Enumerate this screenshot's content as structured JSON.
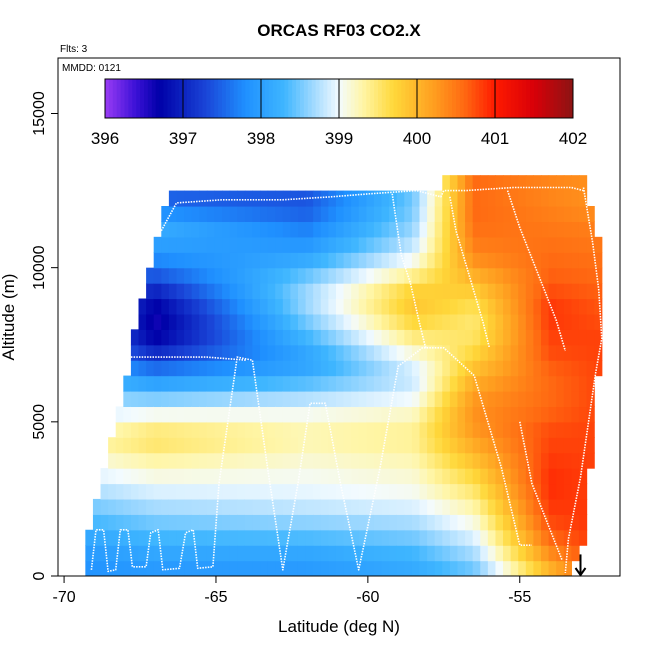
{
  "chart_data": {
    "type": "heatmap",
    "title": "ORCAS RF03 CO2.X",
    "xlabel": "Latitude (deg N)",
    "ylabel": "Altitude (m)",
    "flights_note": "Flts: 3",
    "date_note": "MMDD: 0121",
    "xlim": [
      -70.2,
      -51.7
    ],
    "ylim": [
      0,
      16800
    ],
    "x_ticks": [
      -70,
      -65,
      -60,
      -55
    ],
    "y_ticks": [
      0,
      5000,
      10000,
      15000
    ],
    "colorbar": {
      "min": 396,
      "max": 402,
      "ticks": [
        396,
        397,
        398,
        399,
        400,
        401,
        402
      ],
      "stops": [
        {
          "v": 396.0,
          "c": "#9a3cf5"
        },
        {
          "v": 396.4,
          "c": "#3a10d6"
        },
        {
          "v": 396.7,
          "c": "#0000a8"
        },
        {
          "v": 397.3,
          "c": "#1a46d8"
        },
        {
          "v": 397.8,
          "c": "#1f90ff"
        },
        {
          "v": 398.3,
          "c": "#3fb6ff"
        },
        {
          "v": 398.7,
          "c": "#a8dcff"
        },
        {
          "v": 399.0,
          "c": "#f3fbff"
        },
        {
          "v": 399.3,
          "c": "#fff6a8"
        },
        {
          "v": 399.7,
          "c": "#ffd83a"
        },
        {
          "v": 400.2,
          "c": "#ffa020"
        },
        {
          "v": 400.6,
          "c": "#ff6a12"
        },
        {
          "v": 401.0,
          "c": "#ff1a00"
        },
        {
          "v": 401.5,
          "c": "#d80008"
        },
        {
          "v": 402.0,
          "c": "#8c1414"
        }
      ]
    },
    "grid_x_start": -69.3,
    "grid_x_step": 0.25,
    "grid_y_start": 0,
    "grid_y_step": 500,
    "field_profile": [
      {
        "lat": -69.3,
        "vals": [
          397.8,
          397.9,
          398.0,
          398.2,
          398.4,
          398.6,
          398.8,
          399.0,
          399.2,
          399.3,
          399.0,
          398.8,
          398.5,
          398.2,
          398.0,
          397.8
        ]
      },
      {
        "lat": -67.0,
        "vals": [
          397.9,
          398.0,
          398.2,
          398.4,
          398.6,
          398.8,
          399.0,
          399.2,
          399.4,
          399.6,
          399.3,
          398.8,
          398.3,
          397.8,
          397.3,
          396.8,
          396.6,
          396.6,
          396.8,
          397.2,
          397.6,
          397.9,
          398.1,
          398.2,
          397.5
        ]
      },
      {
        "lat": -62.0,
        "vals": [
          397.9,
          398.0,
          398.2,
          398.5,
          398.7,
          398.9,
          399.0,
          399.1,
          399.2,
          399.3,
          399.2,
          398.9,
          398.6,
          398.2,
          398.0,
          398.2,
          398.4,
          398.6,
          398.7,
          398.6,
          398.3,
          398.0,
          397.8,
          397.6,
          397.4
        ]
      },
      {
        "lat": -58.5,
        "vals": [
          398.1,
          398.2,
          398.4,
          398.6,
          398.8,
          399.0,
          399.1,
          399.2,
          399.3,
          399.4,
          399.3,
          399.1,
          398.9,
          398.8,
          399.0,
          399.3,
          399.6,
          399.8,
          399.9,
          399.6,
          399.2,
          398.9,
          398.7,
          398.6,
          398.5
        ]
      },
      {
        "lat": -56.5,
        "vals": [
          398.4,
          398.6,
          398.8,
          399.0,
          399.2,
          399.4,
          399.6,
          399.8,
          400.0,
          400.2,
          400.3,
          400.3,
          400.2,
          400.0,
          399.8,
          399.6,
          399.5,
          399.5,
          399.7,
          399.9,
          400.2,
          400.4,
          400.5,
          400.6,
          400.6
        ]
      },
      {
        "lat": -54.0,
        "vals": [
          399.9,
          400.2,
          400.5,
          400.7,
          400.8,
          400.9,
          400.9,
          400.9,
          400.8,
          400.8,
          400.7,
          400.6,
          400.6,
          400.6,
          400.7,
          400.8,
          400.8,
          400.9,
          400.8,
          400.7,
          400.6,
          400.6,
          400.5,
          400.5,
          400.4
        ]
      },
      {
        "lat": -52.3,
        "vals": [
          400.8,
          400.9,
          400.9,
          400.9,
          400.9,
          400.8,
          400.8,
          400.8,
          400.8,
          400.8,
          400.8,
          400.8,
          400.8,
          400.8,
          400.8,
          400.8,
          400.8,
          400.7,
          400.7,
          400.6,
          400.6,
          400.5,
          400.5,
          400.4,
          400.3
        ]
      }
    ],
    "coverage": [
      {
        "lat": -69.3,
        "top": 700
      },
      {
        "lat": -69.0,
        "top": 1900
      },
      {
        "lat": -68.5,
        "top": 3700
      },
      {
        "lat": -68.0,
        "top": 5800
      },
      {
        "lat": -67.5,
        "top": 8500
      },
      {
        "lat": -67.0,
        "top": 10400
      },
      {
        "lat": -66.5,
        "top": 12200
      },
      {
        "lat": -63.0,
        "top": 12200
      },
      {
        "lat": -62.0,
        "top": 12500
      },
      {
        "lat": -57.5,
        "top": 12500
      },
      {
        "lat": -56.0,
        "top": 12700
      },
      {
        "lat": -53.0,
        "top": 12700
      },
      {
        "lat": -52.6,
        "top": 11300
      },
      {
        "lat": -52.4,
        "top": 9000
      },
      {
        "lat": -52.6,
        "top": 7000
      }
    ],
    "right_edge": [
      {
        "alt": 0,
        "lat": -53.3
      },
      {
        "alt": 1300,
        "lat": -52.9
      },
      {
        "alt": 3000,
        "lat": -52.7
      },
      {
        "alt": 4500,
        "lat": -52.6
      },
      {
        "alt": 6000,
        "lat": -52.5
      },
      {
        "alt": 7500,
        "lat": -52.2
      },
      {
        "alt": 9000,
        "lat": -52.2
      },
      {
        "alt": 10800,
        "lat": -52.4
      },
      {
        "alt": 12800,
        "lat": -52.9
      }
    ],
    "flight_tracks": [
      {
        "points": [
          [
            -69.1,
            200
          ],
          [
            -68.95,
            1500
          ],
          [
            -68.7,
            1500
          ],
          [
            -68.55,
            150
          ],
          [
            -68.3,
            200
          ],
          [
            -68.15,
            1500
          ],
          [
            -67.9,
            1500
          ],
          [
            -67.75,
            300
          ],
          [
            -67.3,
            300
          ],
          [
            -67.15,
            1400
          ],
          [
            -66.9,
            1500
          ],
          [
            -66.75,
            200
          ],
          [
            -66.2,
            250
          ],
          [
            -66.0,
            1400
          ],
          [
            -65.75,
            1500
          ],
          [
            -65.6,
            250
          ],
          [
            -65.1,
            300
          ],
          [
            -64.9,
            3000
          ],
          [
            -64.3,
            7100
          ],
          [
            -63.8,
            7000
          ],
          [
            -63.3,
            3500
          ],
          [
            -62.8,
            200
          ],
          [
            -62.3,
            3000
          ],
          [
            -61.9,
            5600
          ],
          [
            -61.4,
            5600
          ],
          [
            -60.9,
            3000
          ],
          [
            -60.3,
            200
          ],
          [
            -59.6,
            3500
          ],
          [
            -59.0,
            6800
          ],
          [
            -58.2,
            7400
          ],
          [
            -57.5,
            7400
          ],
          [
            -56.5,
            6500
          ],
          [
            -55.6,
            3500
          ],
          [
            -55.0,
            1000
          ],
          [
            -54.6,
            1000
          ]
        ]
      },
      {
        "points": [
          [
            -68.6,
            7100
          ],
          [
            -67.2,
            7100
          ],
          [
            -65.3,
            7100
          ],
          [
            -64.0,
            7000
          ]
        ]
      },
      {
        "points": [
          [
            -66.8,
            11200
          ],
          [
            -66.3,
            12100
          ],
          [
            -64.8,
            12200
          ],
          [
            -62.8,
            12200
          ],
          [
            -61.2,
            12300
          ],
          [
            -59.9,
            12400
          ],
          [
            -58.4,
            12500
          ],
          [
            -57.6,
            12300
          ],
          [
            -57.5,
            12500
          ],
          [
            -56.8,
            12500
          ],
          [
            -55.2,
            12600
          ],
          [
            -53.3,
            12600
          ],
          [
            -52.9,
            12500
          ]
        ]
      },
      {
        "points": [
          [
            -59.2,
            12400
          ],
          [
            -58.9,
            10400
          ],
          [
            -58.6,
            9500
          ],
          [
            -58.3,
            8200
          ],
          [
            -58.1,
            7400
          ]
        ]
      },
      {
        "points": [
          [
            -57.3,
            12300
          ],
          [
            -57.1,
            11200
          ],
          [
            -56.8,
            10200
          ],
          [
            -56.5,
            9200
          ],
          [
            -56.2,
            8200
          ],
          [
            -56.0,
            7400
          ]
        ]
      },
      {
        "points": [
          [
            -55.4,
            12500
          ],
          [
            -55.0,
            11300
          ],
          [
            -54.6,
            10300
          ],
          [
            -54.2,
            9300
          ],
          [
            -53.8,
            8300
          ],
          [
            -53.5,
            7300
          ]
        ]
      },
      {
        "points": [
          [
            -52.9,
            12600
          ],
          [
            -52.6,
            10800
          ],
          [
            -52.4,
            9300
          ],
          [
            -52.3,
            7700
          ],
          [
            -52.5,
            6600
          ],
          [
            -53.0,
            3200
          ],
          [
            -53.4,
            1200
          ],
          [
            -53.5,
            100
          ]
        ]
      },
      {
        "points": [
          [
            -55.0,
            5000
          ],
          [
            -54.6,
            3000
          ],
          [
            -54.0,
            1500
          ],
          [
            -53.6,
            500
          ]
        ]
      }
    ],
    "arrow_lat": -53.0,
    "arrow_alt_top": 700
  }
}
